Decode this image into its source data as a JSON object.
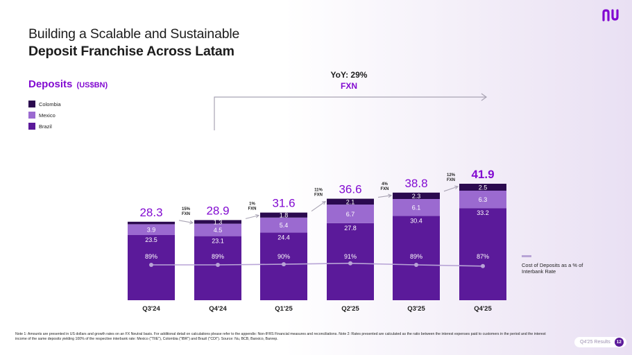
{
  "slide": {
    "title_line1": "Building a Scalable and Sustainable",
    "title_line2": "Deposit Franchise Across Latam",
    "section_title": "Deposits",
    "section_unit": "(US$BN)",
    "yoy_line1": "YoY: 29%",
    "yoy_line2": "FXN",
    "cost_of_deposits_legend": "Cost of Deposits as a % of Interbank Rate",
    "footnote": "Note 1: Amounts are presented in US dollars and growth rates on an FX Neutral basis. For additional detail on calculations please refer to the appendix: Non-IFRS Financial measures and reconciliations. Note 2: Rates presented are calculated as the ratio between the interest expenses paid to customers in the period and the interest income of the same deposits yielding 100% of the respective interbank rate: Mexico (\"TIIE\"), Colombia (\"IBR\") and Brazil (\"CDI\"). Source: Nu, BCB, Banxico, Banrep.",
    "page_label": "Q4'25 Results",
    "page_number": "12",
    "logo_text": "nu"
  },
  "colors": {
    "brand": "#820ad1",
    "colombia": "#2b0a4f",
    "mexico": "#9b6ad0",
    "brazil": "#5b1a9a",
    "line": "#b8a4d6"
  },
  "chart_data": {
    "type": "bar",
    "stacked": true,
    "title": "Deposits (US$BN)",
    "categories": [
      "Q3'24",
      "Q4'24",
      "Q1'25",
      "Q2'25",
      "Q3'25",
      "Q4'25"
    ],
    "series": [
      {
        "name": "Brazil",
        "values": [
          23.5,
          23.1,
          24.4,
          27.8,
          30.4,
          33.2
        ]
      },
      {
        "name": "Mexico",
        "values": [
          3.9,
          4.5,
          5.4,
          6.7,
          6.1,
          6.3
        ]
      },
      {
        "name": "Colombia",
        "values": [
          0.9,
          1.3,
          1.8,
          2.1,
          2.3,
          2.5
        ]
      }
    ],
    "segment_labels": {
      "Brazil": [
        "23.5",
        "23.1",
        "24.4",
        "27.8",
        "30.4",
        "33.2"
      ],
      "Mexico": [
        "3.9",
        "4.5",
        "5.4",
        "6.7",
        "6.1",
        "6.3"
      ],
      "Colombia": [
        "",
        "1.3",
        "1.8",
        "2.1",
        "2.3",
        "2.5"
      ]
    },
    "totals": [
      "28.3",
      "28.9",
      "31.6",
      "36.6",
      "38.8",
      "41.9"
    ],
    "totals_values": [
      28.3,
      28.9,
      31.6,
      36.6,
      38.8,
      41.9
    ],
    "qoq_growth": [
      [
        "15%",
        "FXN"
      ],
      [
        "1%",
        "FXN"
      ],
      [
        "11%",
        "FXN"
      ],
      [
        "4%",
        "FXN"
      ],
      [
        "12%",
        "FXN"
      ]
    ],
    "cost_of_deposits": {
      "name": "Cost of Deposits as a % of Interbank Rate",
      "values": [
        89,
        89,
        90,
        91,
        89,
        87
      ],
      "labels": [
        "89%",
        "89%",
        "90%",
        "91%",
        "89%",
        "87%"
      ]
    },
    "yoy_growth": "YoY: 29% FXN",
    "legend": [
      "Colombia",
      "Mexico",
      "Brazil"
    ],
    "ylim": [
      0,
      55
    ]
  }
}
